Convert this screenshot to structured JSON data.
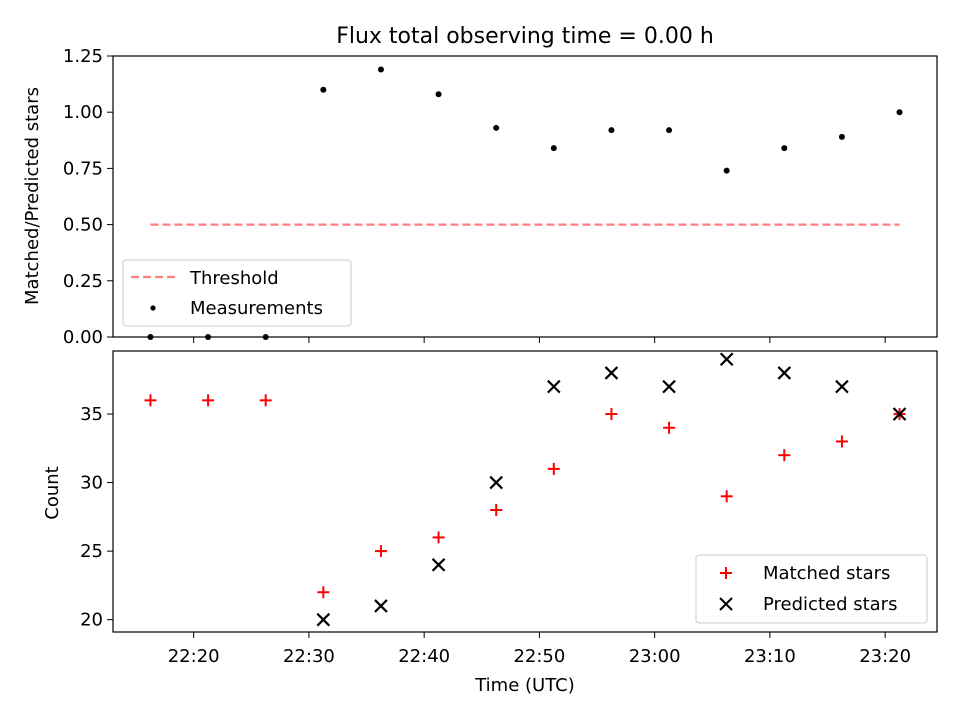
{
  "title": "Flux total observing time = 0.00 h",
  "colors": {
    "threshold": "#ff7f7f",
    "measurements": "#000000",
    "matched": "#ff0000",
    "predicted": "#000000",
    "axes": "#000000"
  },
  "chart_data": [
    {
      "type": "scatter",
      "ylabel": "Matched/Predicted stars",
      "xlabel": "",
      "ylim": [
        0,
        1.25
      ],
      "yticks": [
        0,
        0.25,
        0.5,
        0.75,
        1.0,
        1.25
      ],
      "ytick_labels": [
        "0.00",
        "0.25",
        "0.50",
        "0.75",
        "1.00",
        "1.25"
      ],
      "legend": {
        "position": "lower-left"
      },
      "series": [
        {
          "name": "Threshold",
          "kind": "line",
          "style": "dashed",
          "color": "#ff7f7f",
          "x": [
            "22:16:15",
            "23:21:15"
          ],
          "y": [
            0.5,
            0.5
          ]
        },
        {
          "name": "Measurements",
          "kind": "scatter",
          "marker": "dot",
          "color": "#000000",
          "x": [
            "22:16:15",
            "22:21:15",
            "22:26:15",
            "22:31:15",
            "22:36:15",
            "22:41:15",
            "22:46:15",
            "22:51:15",
            "22:56:15",
            "23:01:15",
            "23:06:15",
            "23:11:15",
            "23:16:15",
            "23:21:15"
          ],
          "y": [
            0.0,
            0.0,
            0.0,
            1.1,
            1.19,
            1.08,
            0.93,
            0.84,
            0.92,
            0.92,
            0.74,
            0.84,
            0.89,
            1.0
          ]
        }
      ]
    },
    {
      "type": "scatter",
      "xlabel": "Time (UTC)",
      "ylabel": "Count",
      "xlim": [
        "22:13:00",
        "23:24:30"
      ],
      "ylim": [
        19.1,
        39.6
      ],
      "xticks": [
        "22:20",
        "22:30",
        "22:40",
        "22:50",
        "23:00",
        "23:10",
        "23:20"
      ],
      "yticks": [
        20,
        25,
        30,
        35
      ],
      "ytick_labels": [
        "20",
        "25",
        "30",
        "35"
      ],
      "legend": {
        "position": "lower-right"
      },
      "series": [
        {
          "name": "Matched stars",
          "kind": "scatter",
          "marker": "plus",
          "color": "#ff0000",
          "x": [
            "22:16:15",
            "22:21:15",
            "22:26:15",
            "22:31:15",
            "22:36:15",
            "22:41:15",
            "22:46:15",
            "22:51:15",
            "22:56:15",
            "23:01:15",
            "23:06:15",
            "23:11:15",
            "23:16:15",
            "23:21:15"
          ],
          "y": [
            36,
            36,
            36,
            22,
            25,
            26,
            28,
            31,
            35,
            34,
            29,
            32,
            33,
            35
          ]
        },
        {
          "name": "Predicted stars",
          "kind": "scatter",
          "marker": "x",
          "color": "#000000",
          "x": [
            "22:31:15",
            "22:36:15",
            "22:41:15",
            "22:46:15",
            "22:51:15",
            "22:56:15",
            "23:01:15",
            "23:06:15",
            "23:11:15",
            "23:16:15",
            "23:21:15"
          ],
          "y": [
            20,
            21,
            24,
            30,
            37,
            38,
            37,
            39,
            38,
            37,
            35
          ]
        }
      ]
    }
  ]
}
